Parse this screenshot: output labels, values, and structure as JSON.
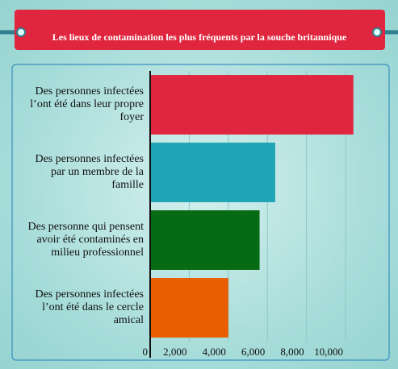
{
  "chart_data": {
    "type": "barh",
    "title": "Les lieux de contamination les plus fréquents par la souche britannique",
    "categories": [
      "Des personnes infectées l’ont été dans leur propre foyer",
      "Des personnes infectées par un membre de la famille",
      "Des personne qui pensent avoir été contaminés en milieu professionnel",
      "Des personnes infectées l’ont été dans le cercle amical"
    ],
    "values": [
      10400,
      6400,
      5600,
      4000
    ],
    "colors": [
      "#e0263f",
      "#1fa5b5",
      "#076b13",
      "#e85e00"
    ],
    "xlim": [
      0,
      10700
    ],
    "xticks": [
      0,
      {
        "value": 2000,
        "label": "2,000"
      },
      {
        "value": 4000,
        "label": "4,000"
      },
      {
        "value": 6000,
        "label": "6,000"
      },
      {
        "value": 8000,
        "label": "8,000"
      },
      {
        "value": 10000,
        "label": "10,000"
      }
    ],
    "grid": true
  }
}
